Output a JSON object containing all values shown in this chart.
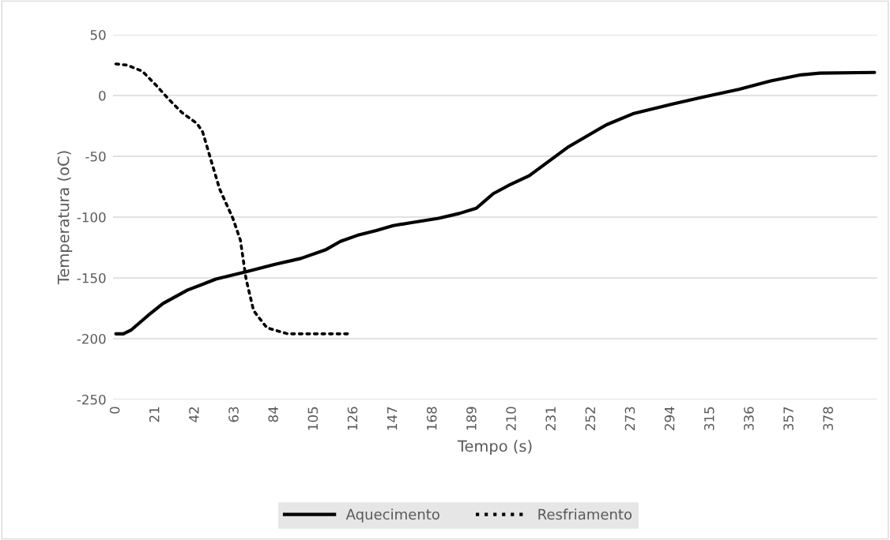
{
  "chart_data": {
    "type": "line",
    "xlabel": "Tempo (s)",
    "ylabel": "Temperatura (oC)",
    "xlim": [
      -1.5,
      403.5
    ],
    "xticks": [
      0,
      21,
      42,
      63,
      84,
      105,
      126,
      147,
      168,
      189,
      210,
      231,
      252,
      273,
      294,
      315,
      336,
      357,
      378
    ],
    "ylim": [
      -250,
      50
    ],
    "yticks": [
      -250,
      -200,
      -150,
      -100,
      -50,
      0,
      50
    ],
    "grid": "y",
    "legend": "bottom",
    "marker": "none",
    "series": [
      {
        "name": "Aquecimento",
        "color": "#000000",
        "line_style": "solid",
        "x": [
          0,
          4,
          8,
          17,
          25,
          38,
          53,
          69,
          84,
          98,
          111,
          119,
          128,
          138,
          147,
          156,
          171,
          182,
          191,
          200,
          208,
          219,
          240,
          260,
          274,
          295,
          312,
          330,
          347,
          363,
          373,
          402
        ],
        "values": [
          -196,
          -196,
          -193,
          -181,
          -171,
          -160,
          -151,
          -145,
          -139,
          -134,
          -127,
          -120,
          -115,
          -111,
          -107,
          -104.7,
          -101,
          -97,
          -92.7,
          -80.7,
          -74,
          -66,
          -42,
          -24,
          -15,
          -7,
          -1,
          5,
          12,
          17,
          18.4,
          19
        ]
      },
      {
        "name": "Resfriamento",
        "color": "#000000",
        "line_style": "dotted",
        "x": [
          0,
          6,
          14,
          21,
          28,
          35,
          43,
          46,
          50,
          55,
          62,
          66,
          69,
          73,
          80,
          91,
          124
        ],
        "values": [
          26,
          25,
          20,
          9,
          -3,
          -14,
          -23,
          -30,
          -51,
          -77,
          -101,
          -119,
          -151,
          -177,
          -191,
          -196,
          -196
        ]
      }
    ]
  }
}
